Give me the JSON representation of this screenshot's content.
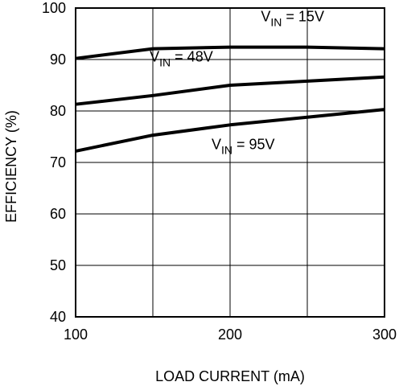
{
  "chart_data": {
    "type": "line",
    "title": "",
    "xlabel": "LOAD CURRENT (mA)",
    "ylabel": "EFFICIENCY (%)",
    "xlim": [
      100,
      300
    ],
    "ylim": [
      40,
      100
    ],
    "x_ticks": [
      100,
      200,
      300
    ],
    "y_ticks": [
      40,
      50,
      60,
      70,
      80,
      90,
      100
    ],
    "grid_x": [
      100,
      150,
      200,
      250,
      300
    ],
    "grid_y": [
      40,
      50,
      60,
      70,
      80,
      90,
      100
    ],
    "grid": true,
    "legend": "none",
    "line_color": "#000000",
    "series": [
      {
        "label_main": "V",
        "label_sub": "IN",
        "label_rest": " = 15V",
        "label_anchor": [
          220,
          97.4
        ],
        "x": [
          100,
          150,
          200,
          250,
          300
        ],
        "y": [
          90.2,
          92.1,
          92.4,
          92.4,
          92.1
        ]
      },
      {
        "label_main": "V",
        "label_sub": "IN",
        "label_rest": " = 48V",
        "label_anchor": [
          148,
          89.6
        ],
        "x": [
          100,
          150,
          200,
          250,
          300
        ],
        "y": [
          81.3,
          83.0,
          85.0,
          85.8,
          86.6
        ]
      },
      {
        "label_main": "V",
        "label_sub": "IN",
        "label_rest": " = 95V",
        "label_anchor": [
          188,
          72.6
        ],
        "x": [
          100,
          150,
          200,
          250,
          300
        ],
        "y": [
          72.2,
          75.3,
          77.3,
          78.8,
          80.3
        ]
      }
    ]
  }
}
